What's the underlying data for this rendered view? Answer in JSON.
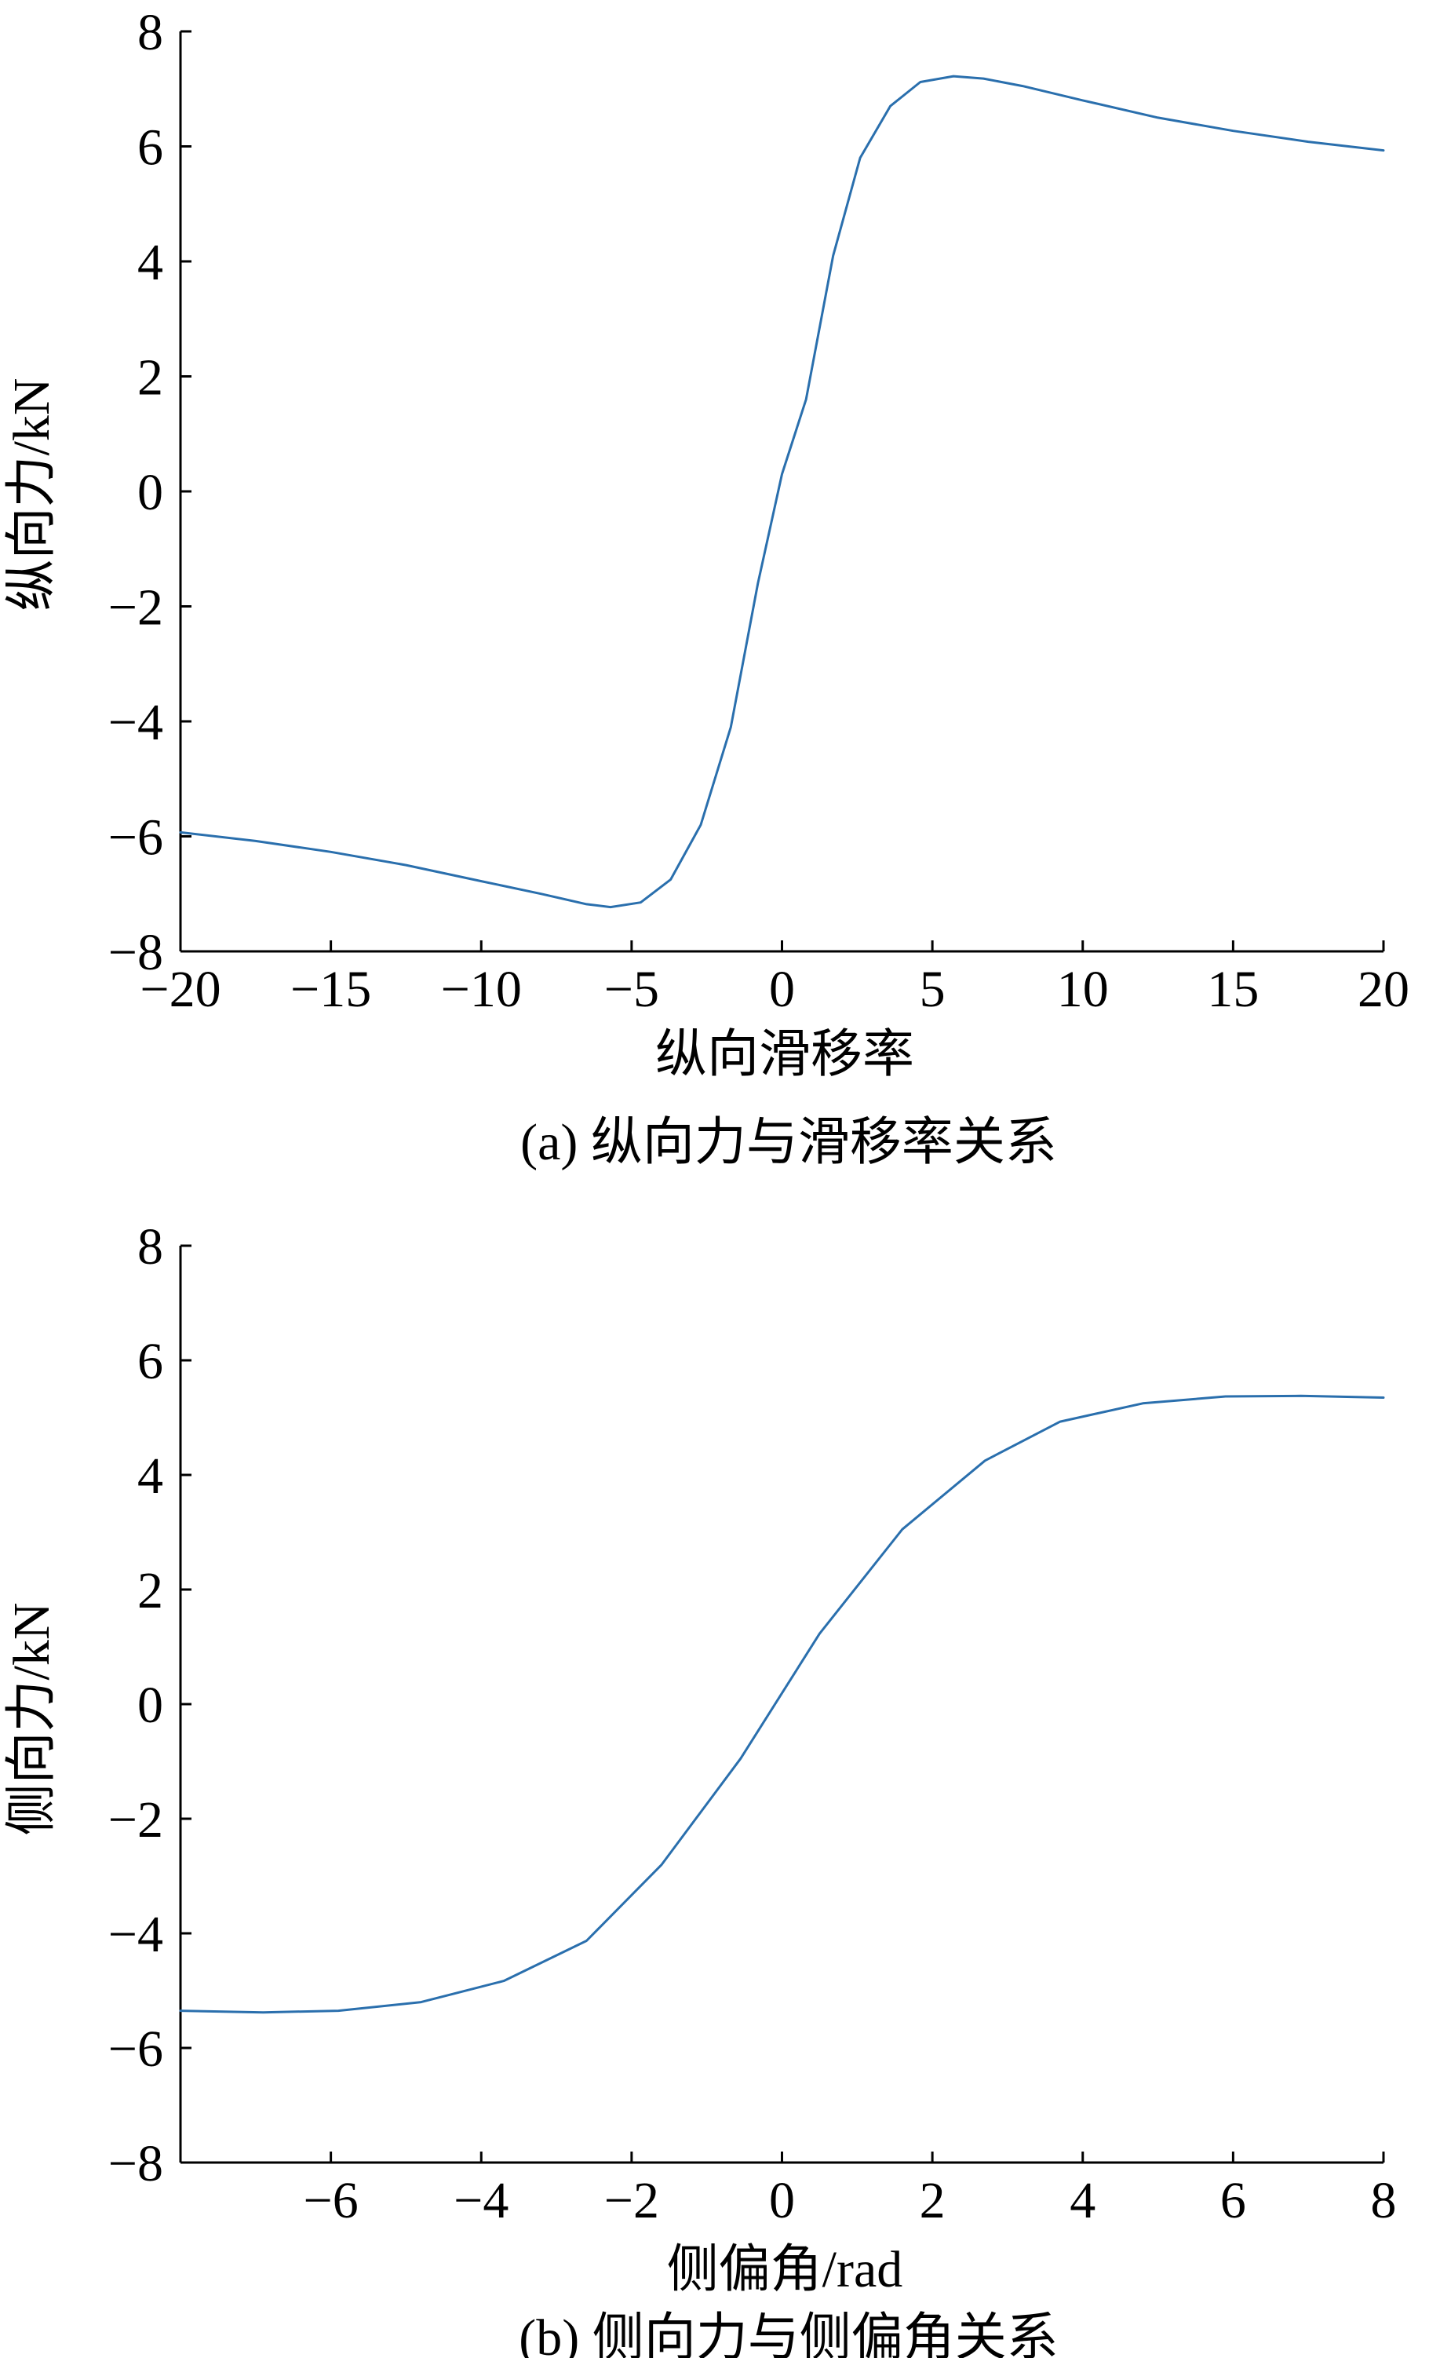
{
  "chart_data": [
    {
      "type": "line",
      "caption": "(a) 纵向力与滑移率关系",
      "xlabel": "纵向滑移率",
      "ylabel": "纵向力/kN",
      "xlim": [
        -20,
        20
      ],
      "ylim": [
        -8,
        8
      ],
      "x_ticks": [
        -20,
        -15,
        -10,
        -5,
        0,
        5,
        10,
        15,
        20
      ],
      "y_ticks": [
        -8,
        -6,
        -4,
        -2,
        0,
        2,
        4,
        6,
        8
      ],
      "x_tick_labels": [
        "−20",
        "−15",
        "−10",
        "−5",
        "0",
        "5",
        "10",
        "15",
        "20"
      ],
      "y_tick_labels": [
        "−8",
        "−6",
        "−4",
        "−2",
        "0",
        "2",
        "4",
        "6",
        "8"
      ],
      "grid": false,
      "series": [
        {
          "color": "#2a6fad",
          "x": [
            -20,
            -17.5,
            -15,
            -12.5,
            -10,
            -8,
            -6.5,
            -5.7,
            -4.7,
            -3.7,
            -2.7,
            -1.7,
            -0.8,
            0,
            0.8,
            1.7,
            2.6,
            3.6,
            4.6,
            5.7,
            6.7,
            8,
            10,
            12.5,
            15,
            17.5,
            20
          ],
          "y": [
            -5.93,
            -6.08,
            -6.27,
            -6.5,
            -6.78,
            -7.0,
            -7.18,
            -7.23,
            -7.15,
            -6.75,
            -5.8,
            -4.1,
            -1.6,
            0.3,
            1.6,
            4.1,
            5.8,
            6.7,
            7.12,
            7.22,
            7.18,
            7.05,
            6.8,
            6.5,
            6.27,
            6.08,
            5.93
          ]
        }
      ]
    },
    {
      "type": "line",
      "caption": "(b) 侧向力与侧偏角关系",
      "xlabel": "侧偏角/rad",
      "ylabel": "侧向力/kN",
      "xlim": [
        -8,
        8
      ],
      "ylim": [
        -8,
        8
      ],
      "x_ticks": [
        -6,
        -4,
        -2,
        0,
        2,
        4,
        6,
        8
      ],
      "y_ticks": [
        -8,
        -6,
        -4,
        -2,
        0,
        2,
        4,
        6,
        8
      ],
      "x_tick_labels": [
        "−6",
        "−4",
        "−2",
        "0",
        "2",
        "4",
        "6",
        "8"
      ],
      "y_tick_labels": [
        "−8",
        "−6",
        "−4",
        "−2",
        "0",
        "2",
        "4",
        "6",
        "8"
      ],
      "grid": false,
      "series": [
        {
          "color": "#2a6fad",
          "x": [
            -8,
            -6.9,
            -5.9,
            -4.8,
            -3.7,
            -2.6,
            -1.6,
            -0.55,
            0.5,
            1.6,
            2.7,
            3.7,
            4.8,
            5.9,
            6.9,
            8
          ],
          "y": [
            -5.35,
            -5.38,
            -5.35,
            -5.2,
            -4.83,
            -4.13,
            -2.8,
            -0.95,
            1.23,
            3.05,
            4.25,
            4.93,
            5.25,
            5.37,
            5.38,
            5.35
          ]
        }
      ]
    }
  ]
}
